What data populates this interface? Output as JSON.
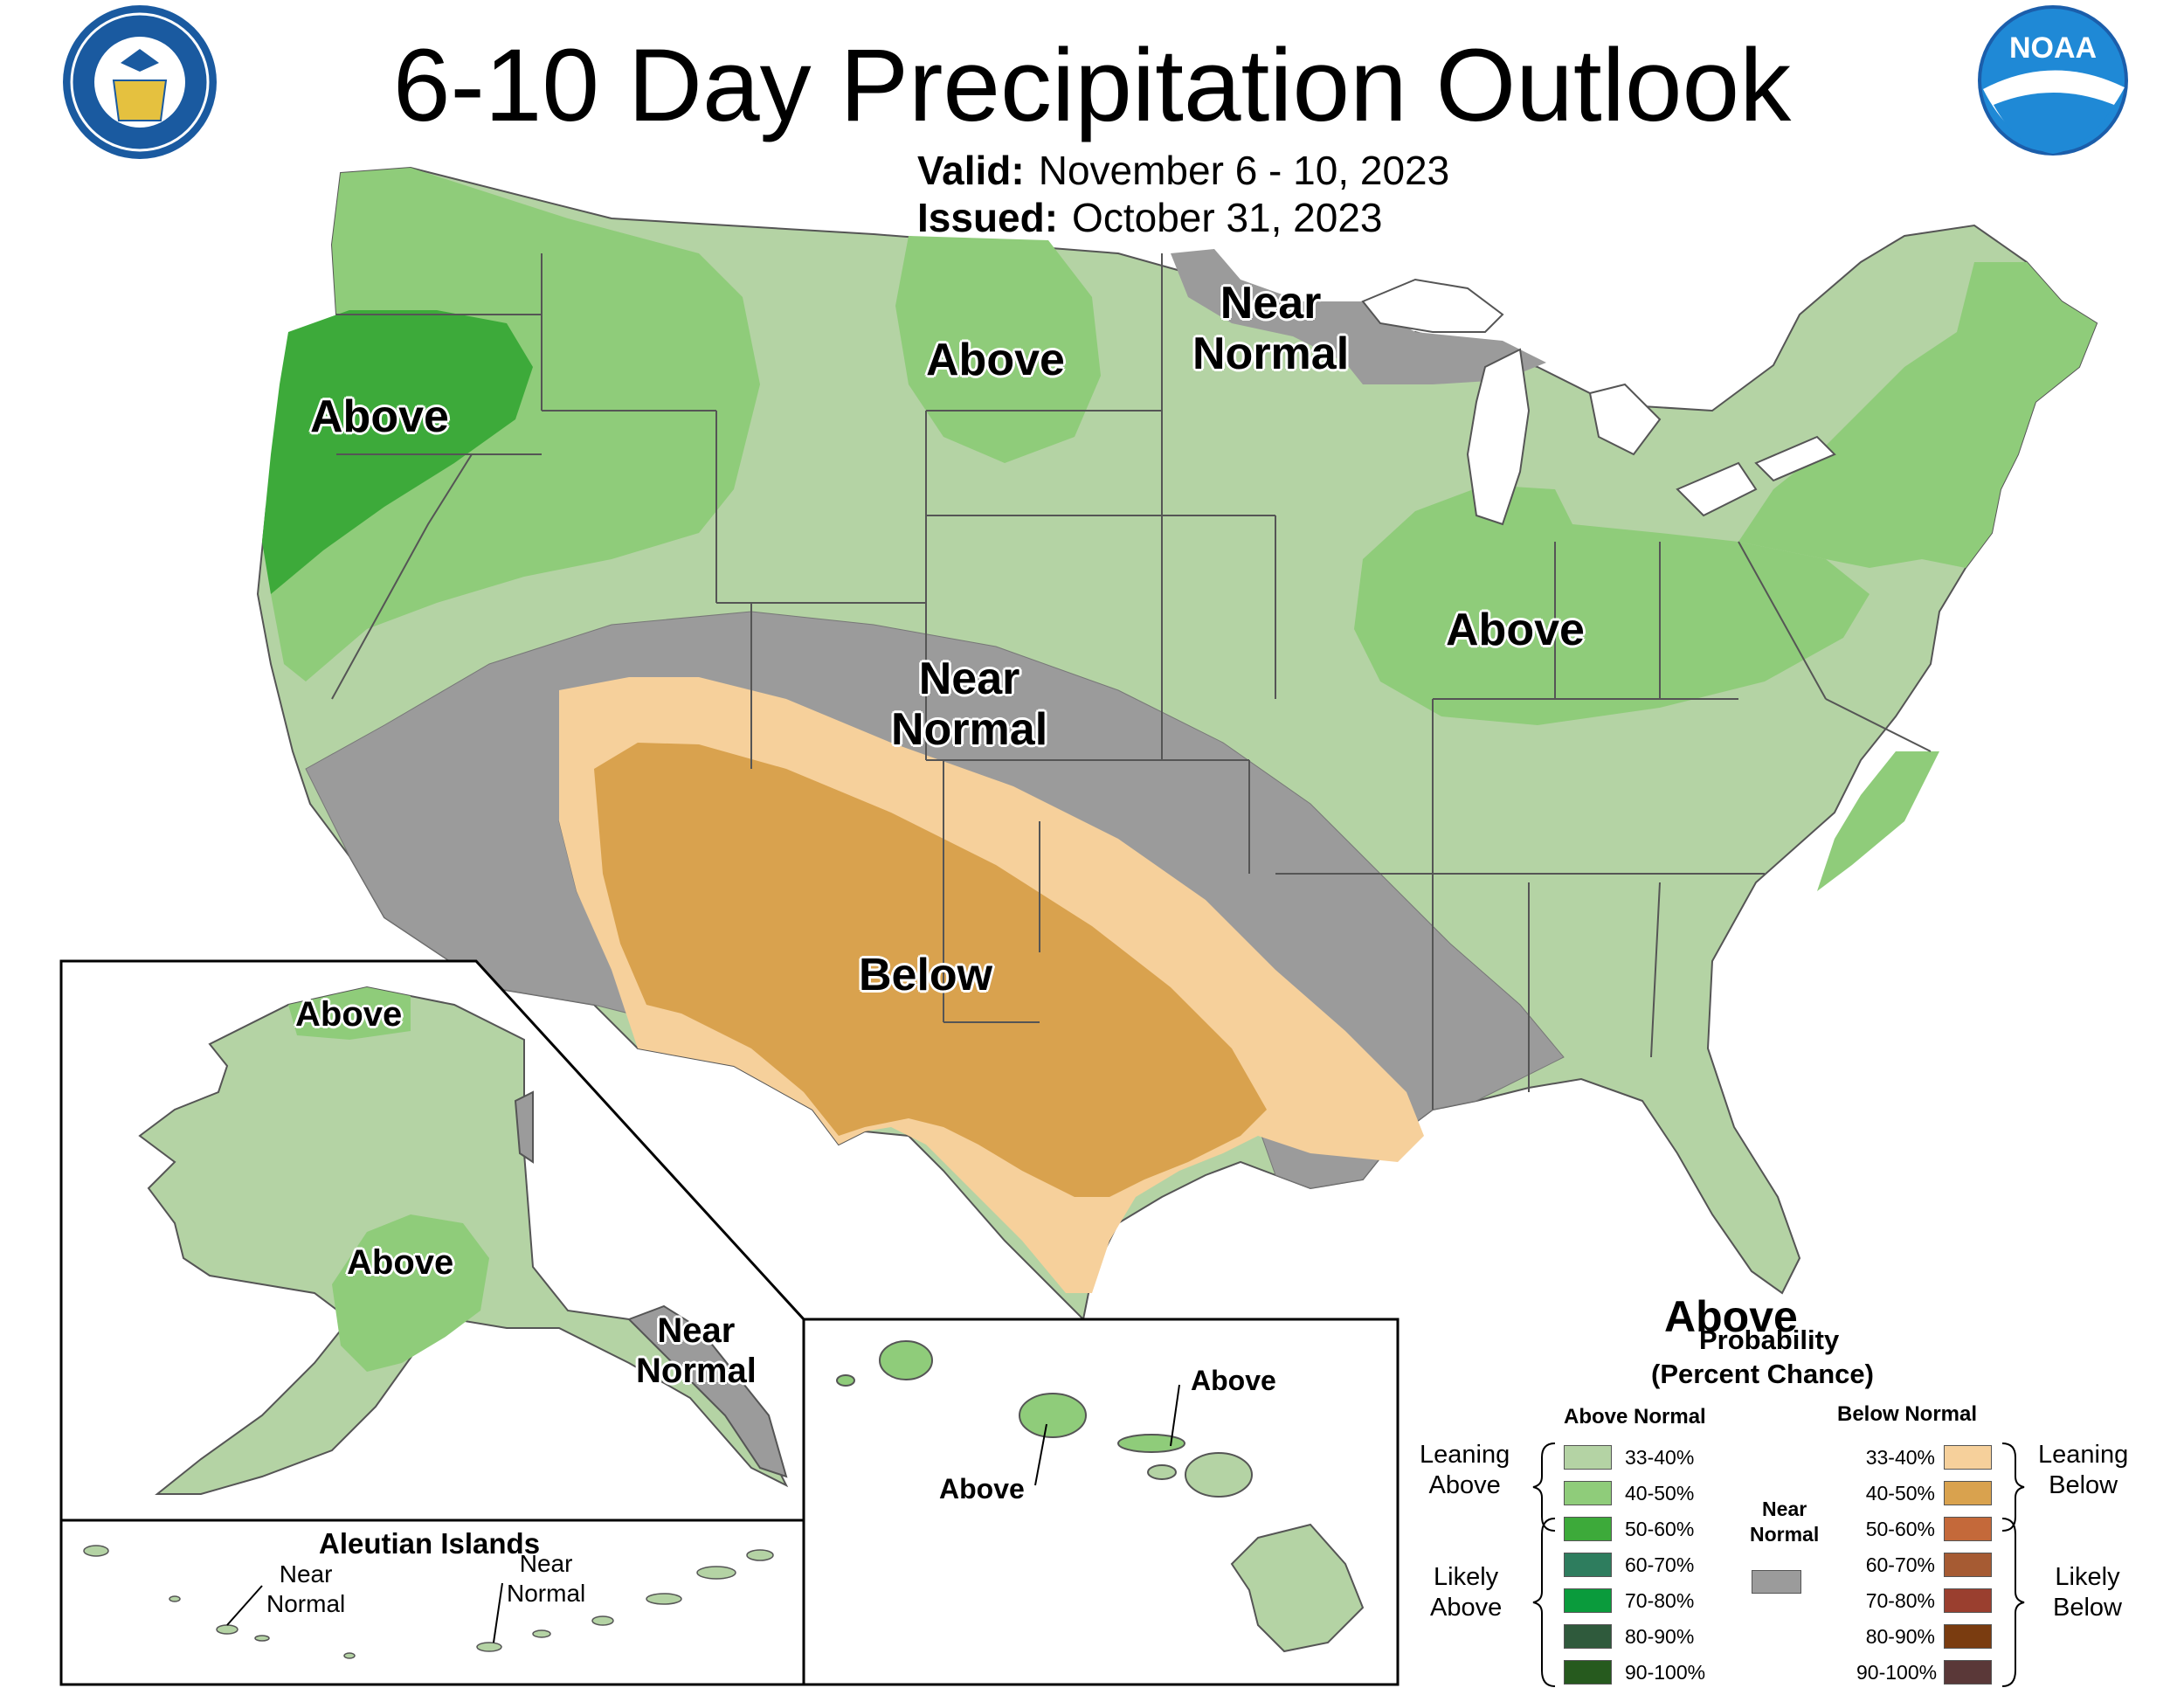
{
  "title": "6-10 Day Precipitation Outlook",
  "valid_label": "Valid:",
  "valid_dates": "November 6 - 10, 2023",
  "issued_label": "Issued:",
  "issued_date": "October 31, 2023",
  "logos": {
    "left": "department-of-commerce-seal",
    "right": "noaa-logo",
    "noaa_text": "NOAA"
  },
  "map_labels": {
    "pacific_nw": "Above",
    "north_dakota": "Above",
    "great_lakes_near": [
      "Near",
      "Normal"
    ],
    "central_near": [
      "Near",
      "Normal"
    ],
    "ohio_valley": "Above",
    "southern_plains": "Below"
  },
  "alaska_labels": {
    "north_slope": "Above",
    "interior": "Above",
    "southeast": [
      "Near",
      "Normal"
    ]
  },
  "aleutian": {
    "title": "Aleutian Islands",
    "label_west": [
      "Near",
      "Normal"
    ],
    "label_east": [
      "Near",
      "Normal"
    ]
  },
  "hawaii_labels": {
    "maui": "Above",
    "oahu": "Above"
  },
  "legend": {
    "dominant_category": "Above",
    "probability_title": "Probability",
    "percent_title": "(Percent Chance)",
    "above_header": "Above Normal",
    "below_header": "Below Normal",
    "near_header": [
      "Near",
      "Normal"
    ],
    "leaning_above": [
      "Leaning",
      "Above"
    ],
    "likely_above": [
      "Likely",
      "Above"
    ],
    "leaning_below": [
      "Leaning",
      "Below"
    ],
    "likely_below": [
      "Likely",
      "Below"
    ],
    "ranges": [
      "33-40%",
      "40-50%",
      "50-60%",
      "60-70%",
      "70-80%",
      "80-90%",
      "90-100%"
    ],
    "above_colors": [
      "#b4d3a4",
      "#8fcc7a",
      "#3daa3a",
      "#2e7d5e",
      "#0a9b3c",
      "#2f5a3c",
      "#265a1e"
    ],
    "below_colors": [
      "#f6d09b",
      "#d9a24e",
      "#c4693a",
      "#a65b33",
      "#9a3f2f",
      "#7a3c10",
      "#5a3838"
    ],
    "near_color": "#9b9b9b"
  },
  "category_colors": {
    "above_33_40": "#b4d3a4",
    "above_40_50": "#8fcc7a",
    "above_50_60": "#3daa3a",
    "near_normal": "#9b9b9b",
    "below_33_40": "#f6d09b",
    "below_40_50": "#d9a24e"
  }
}
